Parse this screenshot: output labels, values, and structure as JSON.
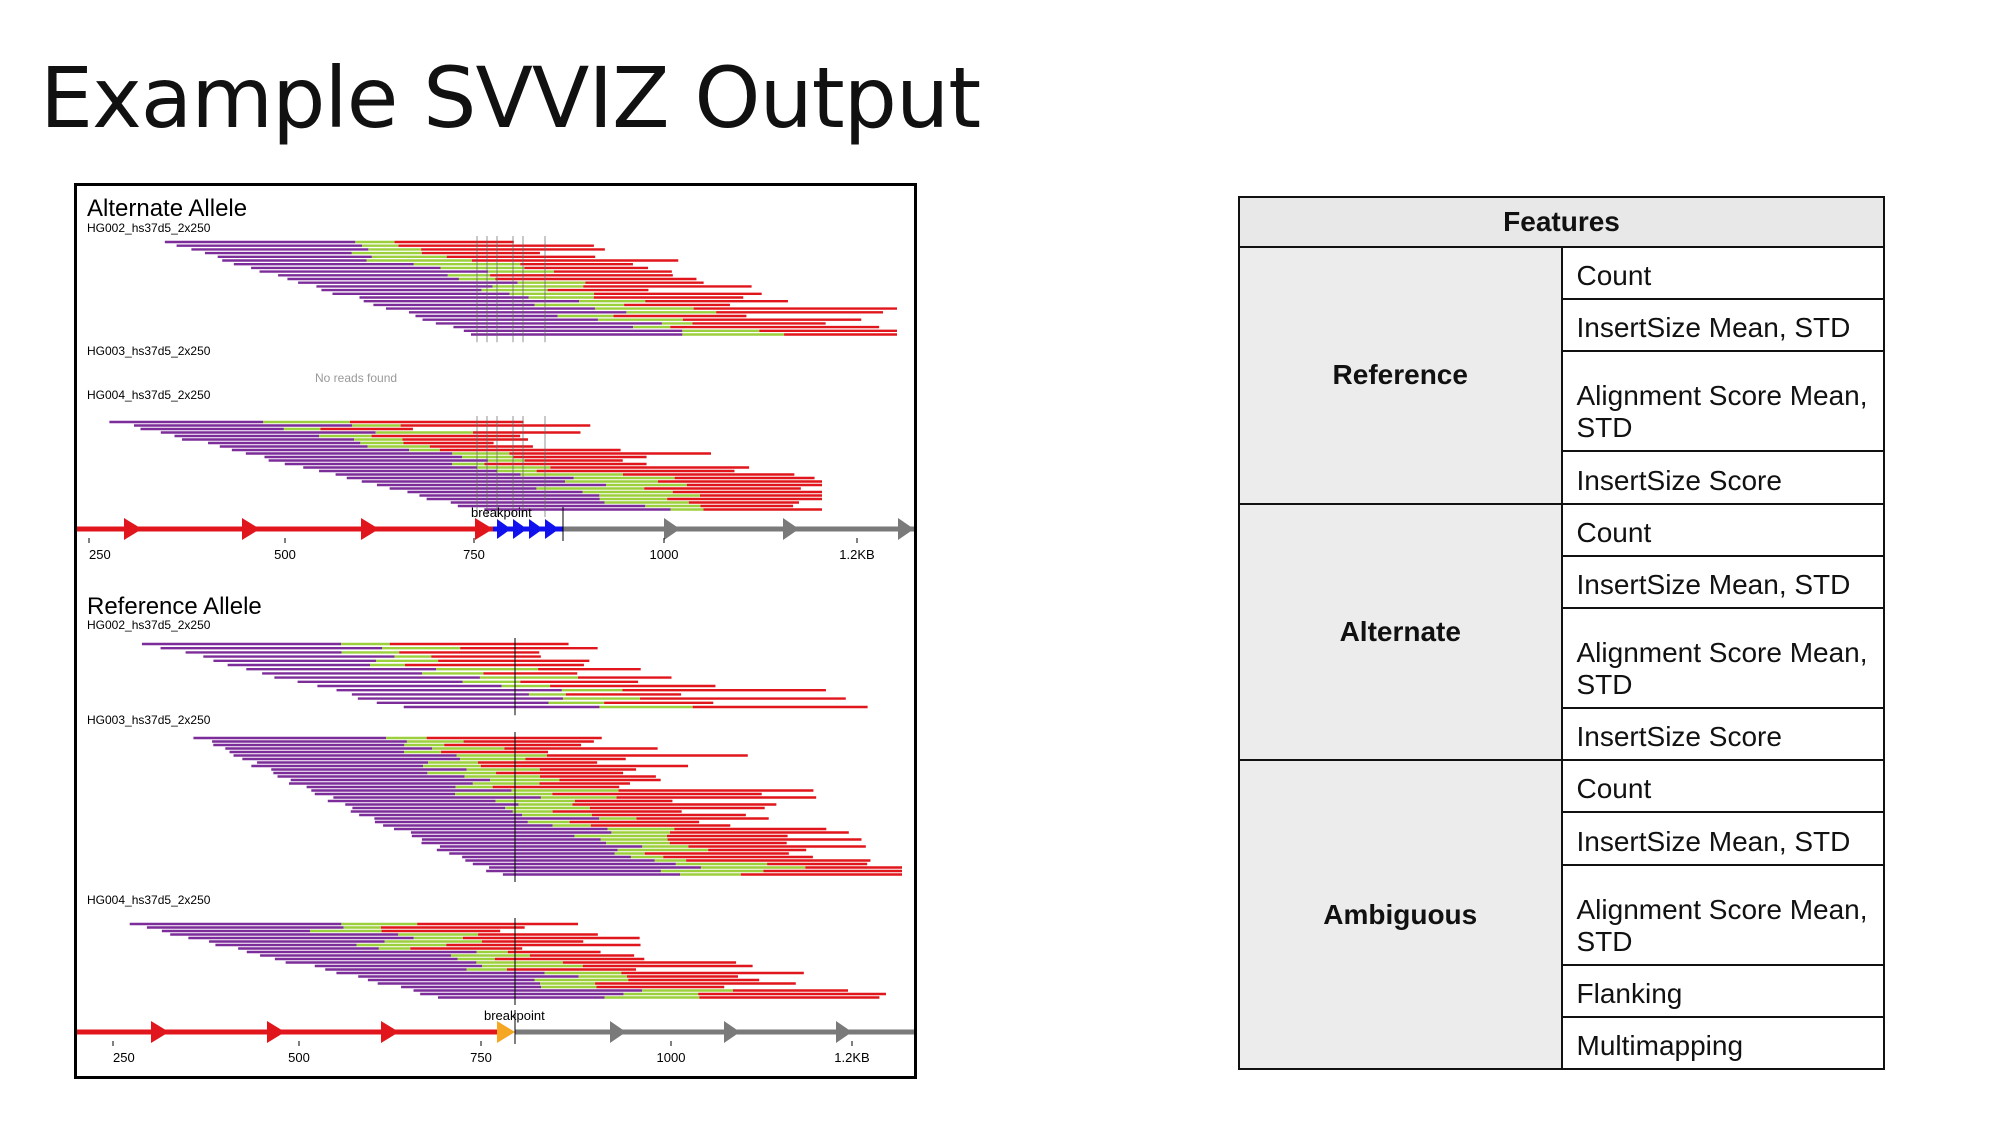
{
  "slide": {
    "title": "Example SVVIZ Output"
  },
  "viz": {
    "colors": {
      "forward": "#7d2d99",
      "reverse": "#e0161c",
      "overlap": "#9ccf3c",
      "grey": "#7a7a7a",
      "alt_breakpoint": "#1111ee",
      "ref_breakpoint": "#f5a623"
    },
    "alternate": {
      "title": "Alternate Allele",
      "samples": [
        {
          "name": "HG002_hs37d5_2x250",
          "reads": true
        },
        {
          "name": "HG003_hs37d5_2x250",
          "reads": false,
          "message": "No reads found"
        },
        {
          "name": "HG004_hs37d5_2x250",
          "reads": true
        }
      ],
      "breakpoint_label": "breakpoint",
      "ticks": [
        "250",
        "500",
        "750",
        "1000",
        "1.2KB"
      ]
    },
    "reference": {
      "title": "Reference Allele",
      "samples": [
        {
          "name": "HG002_hs37d5_2x250",
          "reads": true
        },
        {
          "name": "HG003_hs37d5_2x250",
          "reads": true
        },
        {
          "name": "HG004_hs37d5_2x250",
          "reads": true
        }
      ],
      "breakpoint_label": "breakpoint",
      "ticks": [
        "250",
        "500",
        "750",
        "1000",
        "1.2KB"
      ]
    }
  },
  "features": {
    "header": "Features",
    "groups": [
      {
        "name": "Reference",
        "items": [
          "Count",
          "InsertSize Mean, STD",
          "Alignment Score Mean, STD",
          "InsertSize Score"
        ]
      },
      {
        "name": "Alternate",
        "items": [
          "Count",
          "InsertSize Mean, STD",
          "Alignment Score Mean, STD",
          "InsertSize Score"
        ]
      },
      {
        "name": "Ambiguous",
        "items": [
          "Count",
          "InsertSize Mean, STD",
          "Alignment Score Mean, STD",
          "Flanking",
          "Multimapping"
        ]
      }
    ]
  }
}
